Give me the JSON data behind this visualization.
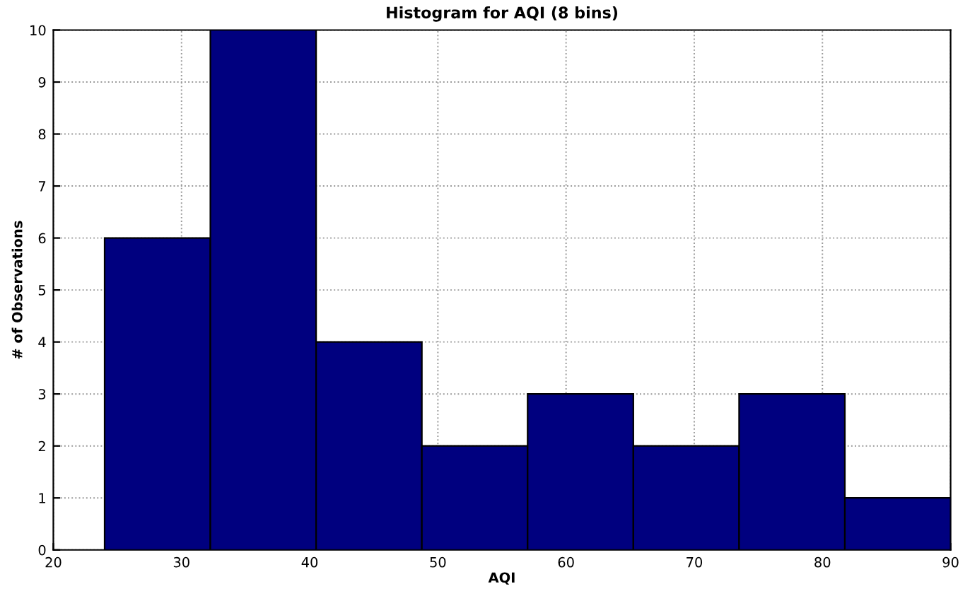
{
  "chart_data": {
    "type": "histogram",
    "title": "Histogram for AQI (8 bins)",
    "xlabel": "AQI",
    "ylabel": "# of Observations",
    "bins": [
      24,
      32.25,
      40.5,
      48.75,
      57,
      65.25,
      73.5,
      81.75,
      90
    ],
    "values": [
      6,
      10,
      4,
      2,
      3,
      2,
      3,
      1
    ],
    "color": "#00007f",
    "xlim": [
      20,
      90
    ],
    "xticks": [
      20,
      30,
      40,
      50,
      60,
      70,
      80,
      90
    ],
    "ylim": [
      0,
      10
    ],
    "yticks": [
      0,
      1,
      2,
      3,
      4,
      5,
      6,
      7,
      8,
      9,
      10
    ],
    "grid": true
  }
}
